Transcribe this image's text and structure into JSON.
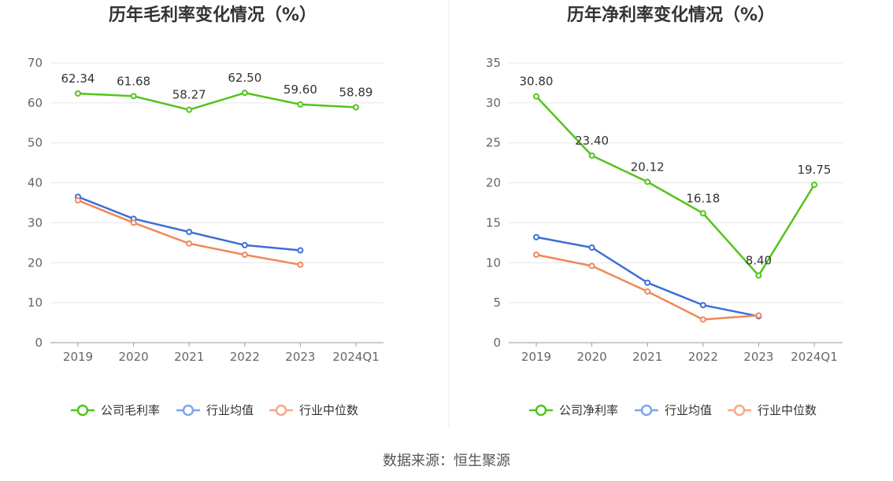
{
  "source_text": "数据来源：恒生聚源",
  "chart_data": [
    {
      "type": "line",
      "title": "历年毛利率变化情况（%）",
      "categories": [
        "2019",
        "2020",
        "2021",
        "2022",
        "2023",
        "2024Q1"
      ],
      "ylim": [
        0,
        70
      ],
      "yticks": [
        "0",
        "10",
        "20",
        "30",
        "40",
        "50",
        "60",
        "70"
      ],
      "grid": true,
      "legend_position": "bottom",
      "series": [
        {
          "name": "公司毛利率",
          "color": "#52c41a",
          "values": [
            62.34,
            61.68,
            58.27,
            62.5,
            59.6,
            58.89
          ],
          "labels": [
            "62.34",
            "61.68",
            "58.27",
            "62.50",
            "59.60",
            "58.89"
          ]
        },
        {
          "name": "行业均值",
          "color": "#3b6fd6",
          "legend_color": "#7ea6e8",
          "values": [
            36.5,
            31.0,
            27.7,
            24.4,
            23.1,
            null
          ]
        },
        {
          "name": "行业中位数",
          "color": "#f0875a",
          "legend_color": "#f5a98a",
          "values": [
            35.6,
            30.0,
            24.8,
            22.0,
            19.5,
            null
          ]
        }
      ]
    },
    {
      "type": "line",
      "title": "历年净利率变化情况（%）",
      "categories": [
        "2019",
        "2020",
        "2021",
        "2022",
        "2023",
        "2024Q1"
      ],
      "ylim": [
        0,
        35
      ],
      "yticks": [
        "0",
        "5",
        "10",
        "15",
        "20",
        "25",
        "30",
        "35"
      ],
      "grid": true,
      "legend_position": "bottom",
      "series": [
        {
          "name": "公司净利率",
          "color": "#52c41a",
          "values": [
            30.8,
            23.4,
            20.12,
            16.18,
            8.4,
            19.75
          ],
          "labels": [
            "30.80",
            "23.40",
            "20.12",
            "16.18",
            "8.40",
            "19.75"
          ]
        },
        {
          "name": "行业均值",
          "color": "#3b6fd6",
          "legend_color": "#7ea6e8",
          "values": [
            13.2,
            11.9,
            7.5,
            4.7,
            3.3,
            null
          ]
        },
        {
          "name": "行业中位数",
          "color": "#f0875a",
          "legend_color": "#f5a98a",
          "values": [
            11.0,
            9.6,
            6.4,
            2.9,
            3.4,
            null
          ]
        }
      ]
    }
  ]
}
